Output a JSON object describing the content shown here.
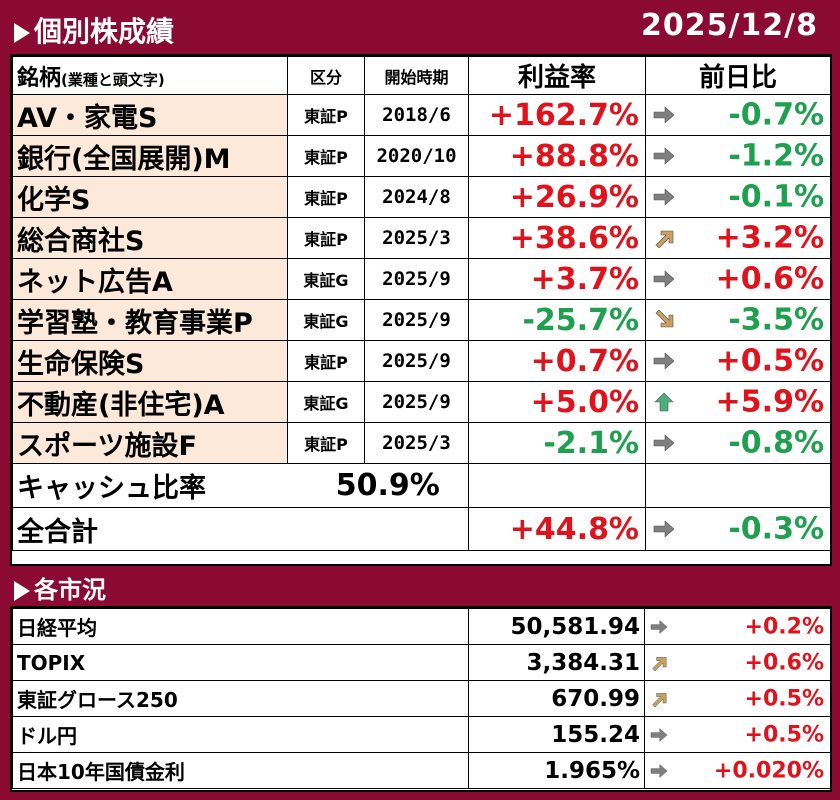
{
  "header": {
    "title": "個別株成績",
    "date": "2025/12/8"
  },
  "stock_table": {
    "columns": {
      "name": "銘柄",
      "name_note": "(業種と頭文字)",
      "market": "区分",
      "start": "開始時期",
      "profit": "利益率",
      "daily": "前日比"
    },
    "rows": [
      {
        "name": "AV・家電S",
        "market": "東証P",
        "start": "2018/6",
        "profit": "+162.7%",
        "profit_color": "#e0121b",
        "trend_icon": "arrow-right-icon",
        "daily": "-0.7%",
        "daily_color": "#1ea04f"
      },
      {
        "name": "銀行(全国展開)M",
        "market": "東証P",
        "start": "2020/10",
        "profit": "+88.8%",
        "profit_color": "#e0121b",
        "trend_icon": "arrow-right-icon",
        "daily": "-1.2%",
        "daily_color": "#1ea04f"
      },
      {
        "name": "化学S",
        "market": "東証P",
        "start": "2024/8",
        "profit": "+26.9%",
        "profit_color": "#e0121b",
        "trend_icon": "arrow-right-icon",
        "daily": "-0.1%",
        "daily_color": "#1ea04f"
      },
      {
        "name": "総合商社S",
        "market": "東証P",
        "start": "2025/3",
        "profit": "+38.6%",
        "profit_color": "#e0121b",
        "trend_icon": "arrow-up-right-icon",
        "daily": "+3.2%",
        "daily_color": "#e0121b"
      },
      {
        "name": "ネット広告A",
        "market": "東証G",
        "start": "2025/9",
        "profit": "+3.7%",
        "profit_color": "#e0121b",
        "trend_icon": "arrow-right-icon",
        "daily": "+0.6%",
        "daily_color": "#e0121b"
      },
      {
        "name": "学習塾・教育事業P",
        "market": "東証G",
        "start": "2025/9",
        "profit": "-25.7%",
        "profit_color": "#1ea04f",
        "trend_icon": "arrow-down-right-icon",
        "daily": "-3.5%",
        "daily_color": "#1ea04f"
      },
      {
        "name": "生命保険S",
        "market": "東証P",
        "start": "2025/9",
        "profit": "+0.7%",
        "profit_color": "#e0121b",
        "trend_icon": "arrow-right-icon",
        "daily": "+0.5%",
        "daily_color": "#e0121b"
      },
      {
        "name": "不動産(非住宅)A",
        "market": "東証G",
        "start": "2025/9",
        "profit": "+5.0%",
        "profit_color": "#e0121b",
        "trend_icon": "arrow-up-icon",
        "daily": "+5.9%",
        "daily_color": "#e0121b"
      },
      {
        "name": "スポーツ施設F",
        "market": "東証P",
        "start": "2025/3",
        "profit": "-2.1%",
        "profit_color": "#1ea04f",
        "trend_icon": "arrow-right-icon",
        "daily": "-0.8%",
        "daily_color": "#1ea04f"
      }
    ],
    "cash": {
      "label": "キャッシュ比率",
      "value": "50.9%"
    },
    "total": {
      "label": "全合計",
      "profit": "+44.8%",
      "profit_color": "#e0121b",
      "trend_icon": "arrow-right-icon",
      "daily": "-0.3%",
      "daily_color": "#1ea04f"
    }
  },
  "market_header": {
    "title": "各市況"
  },
  "market_table": {
    "rows": [
      {
        "name": "日経平均",
        "value": "50,581.94",
        "trend_icon": "arrow-right-icon",
        "change": "+0.2%",
        "change_color": "#e0121b"
      },
      {
        "name": "TOPIX",
        "value": "3,384.31",
        "trend_icon": "arrow-up-right-icon",
        "change": "+0.6%",
        "change_color": "#e0121b"
      },
      {
        "name": "東証グロース250",
        "value": "670.99",
        "trend_icon": "arrow-up-right-icon",
        "change": "+0.5%",
        "change_color": "#e0121b"
      },
      {
        "name": "ドル円",
        "value": "155.24",
        "trend_icon": "arrow-right-icon",
        "change": "+0.5%",
        "change_color": "#e0121b"
      },
      {
        "name": "日本10年国債金利",
        "value": "1.965%",
        "trend_icon": "arrow-right-icon",
        "change": "+0.020%",
        "change_color": "#e0121b"
      }
    ]
  },
  "colors": {
    "background": "#8b0a33",
    "name_cell": "#fce9d9",
    "positive": "#e0121b",
    "negative": "#1ea04f",
    "arrow_flat": "#7f7f7f",
    "arrow_up_right": "#c8a060",
    "arrow_up": "#4caf7a"
  }
}
